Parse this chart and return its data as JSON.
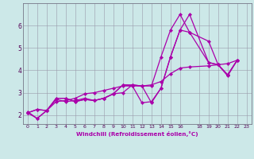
{
  "xlabel": "Windchill (Refroidissement éolien,°C)",
  "bg_color": "#cce8e8",
  "line_color": "#aa00aa",
  "grid_color": "#9999aa",
  "xlim": [
    -0.5,
    23.5
  ],
  "ylim": [
    1.6,
    7.0
  ],
  "xtick_labels": [
    "0",
    "1",
    "2",
    "3",
    "4",
    "5",
    "6",
    "7",
    "8",
    "9",
    "10",
    "11",
    "12",
    "13",
    "14",
    "15",
    "16",
    "18",
    "19",
    "20",
    "21",
    "22",
    "23"
  ],
  "xtick_pos": [
    0,
    1,
    2,
    3,
    4,
    5,
    6,
    7,
    8,
    9,
    10,
    11,
    12,
    13,
    14,
    15,
    16,
    18,
    19,
    20,
    21,
    22,
    23
  ],
  "yticks": [
    2,
    3,
    4,
    5,
    6
  ],
  "series": [
    {
      "x": [
        0,
        1,
        2,
        3,
        4,
        5,
        6,
        7,
        8,
        9,
        10,
        11,
        12,
        13,
        14,
        15,
        16,
        17,
        19,
        20,
        21,
        22
      ],
      "y": [
        2.15,
        1.85,
        2.2,
        2.75,
        2.75,
        2.6,
        2.7,
        2.65,
        2.75,
        2.95,
        3.35,
        3.3,
        2.55,
        2.6,
        3.2,
        4.6,
        5.8,
        6.5,
        4.35,
        4.25,
        3.8,
        4.45
      ]
    },
    {
      "x": [
        0,
        1,
        2,
        3,
        4,
        5,
        6,
        7,
        8,
        9,
        10,
        11,
        12,
        13,
        14,
        15,
        16,
        17,
        19,
        20,
        21,
        22
      ],
      "y": [
        2.1,
        1.85,
        2.2,
        2.75,
        2.75,
        2.6,
        2.7,
        2.65,
        2.75,
        2.95,
        3.35,
        3.35,
        3.3,
        3.3,
        4.6,
        5.8,
        6.5,
        5.7,
        4.35,
        4.25,
        3.8,
        4.45
      ]
    },
    {
      "x": [
        0,
        1,
        2,
        3,
        4,
        5,
        6,
        7,
        8,
        9,
        10,
        11,
        12,
        13,
        14,
        15,
        16,
        17,
        19,
        20,
        21,
        22
      ],
      "y": [
        2.1,
        2.25,
        2.2,
        2.7,
        2.6,
        2.65,
        2.75,
        2.65,
        2.75,
        2.95,
        3.0,
        3.35,
        3.3,
        2.55,
        3.2,
        4.6,
        5.8,
        5.7,
        5.3,
        4.25,
        3.75,
        4.45
      ]
    },
    {
      "x": [
        0,
        1,
        2,
        3,
        4,
        5,
        6,
        7,
        8,
        9,
        10,
        11,
        12,
        13,
        14,
        15,
        16,
        17,
        19,
        20,
        21,
        22
      ],
      "y": [
        2.1,
        2.25,
        2.2,
        2.6,
        2.65,
        2.75,
        2.95,
        3.0,
        3.1,
        3.2,
        3.3,
        3.3,
        3.3,
        3.35,
        3.5,
        3.85,
        4.1,
        4.15,
        4.2,
        4.25,
        4.3,
        4.45
      ]
    }
  ]
}
